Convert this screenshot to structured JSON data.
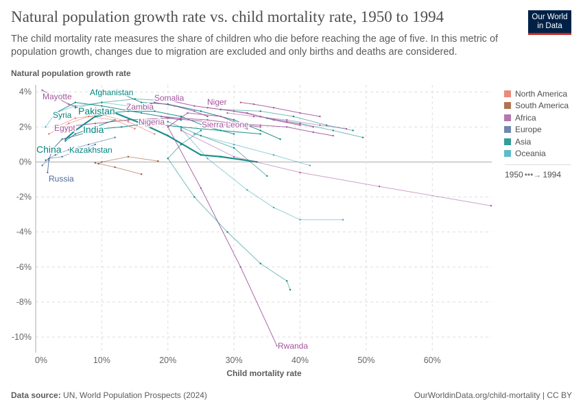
{
  "header": {
    "title": "Natural population growth rate vs. child mortality rate, 1950 to 1994",
    "subtitle": "The child mortality rate measures the share of children who die before reaching the age of five. In this metric of population growth, changes due to migration are excluded and only births and deaths are considered.",
    "logo": "Our World in Data"
  },
  "footer": {
    "source_label": "Data source:",
    "source": "UN, World Population Prospects (2024)",
    "link": "OurWorldinData.org/child-mortality | CC BY"
  },
  "colors": {
    "North America": "#E56E5A",
    "South America": "#9A5129",
    "Africa": "#A2559C",
    "Europe": "#4C6A9C",
    "Asia": "#00847E",
    "Oceania": "#38AABA"
  },
  "timeline": {
    "start": "1950",
    "end": "1994"
  },
  "chart_data": {
    "type": "scatter",
    "connected": true,
    "xlabel": "Child mortality rate",
    "ylabel": "Natural population growth rate",
    "xlim": [
      0,
      69
    ],
    "ylim": [
      -10.9,
      4.4
    ],
    "xticks": [
      0,
      10,
      20,
      30,
      40,
      50,
      60
    ],
    "xtick_labels": [
      "0%",
      "10%",
      "20%",
      "30%",
      "40%",
      "50%",
      "60%"
    ],
    "yticks": [
      4,
      2,
      0,
      -2,
      -4,
      -6,
      -8,
      -10
    ],
    "ytick_labels": [
      "4%",
      "2%",
      "0%",
      "-2%",
      "-4%",
      "-6%",
      "-8%",
      "-10%"
    ],
    "grid": true,
    "legend": "right",
    "legend_entries": [
      "North America",
      "South America",
      "Africa",
      "Europe",
      "Asia",
      "Oceania"
    ],
    "series": [
      {
        "name": "Afghanistan",
        "region": "Asia",
        "label": true,
        "points": [
          [
            37,
            1.3
          ],
          [
            34,
            1.8
          ],
          [
            30,
            2.4
          ],
          [
            25,
            2.9
          ],
          [
            20,
            3.3
          ],
          [
            16,
            3.4
          ],
          [
            13,
            3.9
          ]
        ]
      },
      {
        "name": "Somalia",
        "region": "Africa",
        "label": true,
        "points": [
          [
            40,
            2.1
          ],
          [
            36,
            2.4
          ],
          [
            32,
            2.8
          ],
          [
            28,
            3.0
          ],
          [
            24,
            3.2
          ],
          [
            18,
            3.7
          ]
        ]
      },
      {
        "name": "Niger",
        "region": "Africa",
        "label": true,
        "points": [
          [
            43,
            2.6
          ],
          [
            40,
            2.8
          ],
          [
            36,
            3.1
          ],
          [
            33,
            3.3
          ],
          [
            31,
            3.4
          ]
        ]
      },
      {
        "name": "Mayotte",
        "region": "Africa",
        "label": true,
        "points": [
          [
            8,
            2.9
          ],
          [
            5,
            3.3
          ],
          [
            3,
            3.7
          ],
          [
            1,
            4.1
          ]
        ]
      },
      {
        "name": "Syria",
        "region": "Asia",
        "label": true,
        "points": [
          [
            22,
            2.4
          ],
          [
            16,
            2.8
          ],
          [
            10,
            3.2
          ],
          [
            6,
            3.4
          ],
          [
            3,
            2.8
          ]
        ]
      },
      {
        "name": "Pakistan",
        "region": "Asia",
        "label": true,
        "points": [
          [
            30,
            1.6
          ],
          [
            26,
            2.0
          ],
          [
            22,
            2.6
          ],
          [
            18,
            2.9
          ],
          [
            14,
            2.9
          ],
          [
            11,
            2.8
          ]
        ]
      },
      {
        "name": "Zambia",
        "region": "Africa",
        "label": true,
        "points": [
          [
            26,
            2.6
          ],
          [
            24,
            2.9
          ],
          [
            21,
            3.2
          ],
          [
            18,
            3.4
          ],
          [
            16,
            3.1
          ]
        ]
      },
      {
        "name": "Egypt",
        "region": "Africa",
        "label": true,
        "points": [
          [
            32,
            1.9
          ],
          [
            26,
            2.3
          ],
          [
            20,
            2.5
          ],
          [
            14,
            2.4
          ],
          [
            9,
            2.2
          ],
          [
            4,
            2.0
          ]
        ]
      },
      {
        "name": "India",
        "region": "Asia",
        "label": true,
        "points": [
          [
            34,
            1.6
          ],
          [
            28,
            1.8
          ],
          [
            22,
            2.0
          ],
          [
            17,
            2.2
          ],
          [
            13,
            2.0
          ],
          [
            10,
            1.9
          ]
        ]
      },
      {
        "name": "Nigeria",
        "region": "Africa",
        "label": true,
        "points": [
          [
            34,
            2.0
          ],
          [
            30,
            2.2
          ],
          [
            26,
            2.4
          ],
          [
            22,
            2.5
          ],
          [
            19,
            2.6
          ]
        ]
      },
      {
        "name": "Sierra Leone",
        "region": "Africa",
        "label": true,
        "points": [
          [
            45,
            1.5
          ],
          [
            42,
            1.7
          ],
          [
            38,
            2.0
          ],
          [
            34,
            2.1
          ],
          [
            30,
            2.2
          ]
        ]
      },
      {
        "name": "China",
        "region": "Asia",
        "label": true,
        "thick": true,
        "points": [
          [
            33.5,
            0.0
          ],
          [
            28,
            0.3
          ],
          [
            25,
            0.4
          ],
          [
            20,
            1.5
          ],
          [
            16,
            2.2
          ],
          [
            12,
            2.8
          ],
          [
            9,
            2.6
          ],
          [
            6,
            1.8
          ],
          [
            4.5,
            1.3
          ]
        ]
      },
      {
        "name": "Kazakhstan",
        "region": "Asia",
        "label": true,
        "points": [
          [
            12,
            2.4
          ],
          [
            9,
            2.0
          ],
          [
            6,
            1.6
          ],
          [
            4.5,
            1.2
          ]
        ]
      },
      {
        "name": "Russia",
        "region": "Europe",
        "label": true,
        "points": [
          [
            8,
            1.7
          ],
          [
            4,
            1.3
          ],
          [
            2.5,
            0.7
          ],
          [
            2,
            0.1
          ],
          [
            1.8,
            -0.6
          ]
        ]
      },
      {
        "name": "Rwanda",
        "region": "Africa",
        "label": true,
        "points": [
          [
            32,
            2.0
          ],
          [
            28,
            2.6
          ],
          [
            23,
            2.8
          ],
          [
            20,
            2.0
          ],
          [
            25,
            -1.5
          ],
          [
            31,
            -6.0
          ],
          [
            36.5,
            -10.5
          ]
        ]
      },
      {
        "name": "",
        "region": "Asia",
        "label": false,
        "points": [
          [
            25,
            1.8
          ],
          [
            22,
            1.0
          ],
          [
            20,
            0.2
          ],
          [
            24,
            -2.0
          ],
          [
            29,
            -4.0
          ],
          [
            34,
            -5.8
          ],
          [
            38,
            -6.8
          ],
          [
            38.5,
            -7.3
          ]
        ]
      },
      {
        "name": "",
        "region": "Oceania",
        "label": true,
        "points": [
          [
            22,
            1.9
          ],
          [
            26,
            0.2
          ],
          [
            32,
            -1.6
          ],
          [
            36,
            -2.6
          ],
          [
            40,
            -3.3
          ],
          [
            46.5,
            -3.3
          ]
        ]
      },
      {
        "name": "",
        "region": "Africa",
        "label": false,
        "points": [
          [
            22,
            1.8
          ],
          [
            30,
            0.3
          ],
          [
            40,
            -0.6
          ],
          [
            52,
            -1.4
          ],
          [
            68.9,
            -2.5
          ]
        ]
      },
      {
        "name": "",
        "region": "Asia",
        "label": false,
        "points": [
          [
            48,
            1.8
          ],
          [
            44,
            2.1
          ],
          [
            39,
            2.6
          ],
          [
            34,
            2.9
          ],
          [
            28,
            3.0
          ]
        ]
      },
      {
        "name": "",
        "region": "Asia",
        "label": false,
        "points": [
          [
            49.5,
            1.4
          ],
          [
            45,
            1.8
          ],
          [
            40,
            2.2
          ],
          [
            35,
            2.5
          ]
        ]
      },
      {
        "name": "",
        "region": "Africa",
        "label": false,
        "points": [
          [
            47,
            1.9
          ],
          [
            43,
            2.1
          ],
          [
            38,
            2.4
          ],
          [
            33,
            2.6
          ],
          [
            29,
            2.8
          ]
        ]
      },
      {
        "name": "",
        "region": "Africa",
        "label": false,
        "points": [
          [
            42,
            2.0
          ],
          [
            38,
            2.3
          ],
          [
            34,
            2.6
          ],
          [
            30,
            2.9
          ],
          [
            26,
            3.1
          ]
        ]
      },
      {
        "name": "",
        "region": "Oceania",
        "label": false,
        "points": [
          [
            41.5,
            -0.2
          ],
          [
            36,
            0.4
          ],
          [
            30,
            1.0
          ],
          [
            24,
            1.6
          ]
        ]
      },
      {
        "name": "",
        "region": "Asia",
        "label": false,
        "points": [
          [
            35,
            -0.8
          ],
          [
            30,
            0.8
          ],
          [
            25,
            1.5
          ],
          [
            20,
            2.3
          ]
        ]
      },
      {
        "name": "",
        "region": "South America",
        "label": false,
        "points": [
          [
            18.5,
            0.05
          ],
          [
            14,
            0.3
          ],
          [
            10,
            0.0
          ],
          [
            9.5,
            -0.1
          ]
        ]
      },
      {
        "name": "",
        "region": "South America",
        "label": false,
        "points": [
          [
            16,
            -0.7
          ],
          [
            12,
            -0.3
          ],
          [
            9,
            -0.05
          ]
        ]
      },
      {
        "name": "",
        "region": "North America",
        "label": false,
        "points": [
          [
            18,
            1.6
          ],
          [
            14,
            2.3
          ],
          [
            10,
            2.7
          ],
          [
            6,
            2.5
          ],
          [
            3,
            2.0
          ]
        ]
      },
      {
        "name": "",
        "region": "North America",
        "label": false,
        "points": [
          [
            15,
            1.9
          ],
          [
            12,
            2.4
          ],
          [
            8,
            2.6
          ],
          [
            5,
            2.2
          ],
          [
            2,
            1.6
          ]
        ]
      },
      {
        "name": "",
        "region": "Europe",
        "label": false,
        "points": [
          [
            12,
            1.4
          ],
          [
            8,
            1.0
          ],
          [
            5,
            0.7
          ],
          [
            3,
            0.4
          ],
          [
            1.5,
            0.1
          ]
        ]
      },
      {
        "name": "",
        "region": "Europe",
        "label": false,
        "points": [
          [
            9,
            1.0
          ],
          [
            6,
            0.6
          ],
          [
            4,
            0.3
          ],
          [
            2,
            0.2
          ],
          [
            1,
            -0.2
          ]
        ]
      },
      {
        "name": "",
        "region": "Oceania",
        "label": false,
        "points": [
          [
            14,
            3.2
          ],
          [
            10,
            3.4
          ],
          [
            6,
            3.2
          ],
          [
            3,
            2.8
          ],
          [
            1.5,
            2.0
          ]
        ]
      },
      {
        "name": "",
        "region": "Asia",
        "label": false,
        "points": [
          [
            20,
            3.5
          ],
          [
            15,
            3.6
          ],
          [
            10,
            3.4
          ],
          [
            6,
            3.1
          ]
        ]
      }
    ]
  }
}
